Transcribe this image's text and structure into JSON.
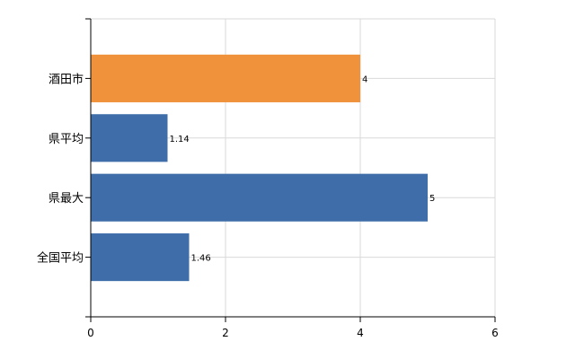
{
  "chart_data": {
    "type": "bar",
    "orientation": "horizontal",
    "categories": [
      "酒田市",
      "県平均",
      "県最大",
      "全国平均"
    ],
    "values": [
      4,
      1.14,
      5,
      1.46
    ],
    "data_labels": [
      "4",
      "1.14",
      "5",
      "1.46"
    ],
    "bar_colors": [
      "#F0913B",
      "#3F6DAA",
      "#3F6DAA",
      "#3F6DAA"
    ],
    "xlim": [
      0,
      6
    ],
    "x_ticks": [
      0,
      2,
      4,
      6
    ],
    "x_tick_labels": [
      "0",
      "2",
      "4",
      "6"
    ],
    "grid": true,
    "legend": "none",
    "title": "",
    "xlabel": "",
    "ylabel": ""
  }
}
